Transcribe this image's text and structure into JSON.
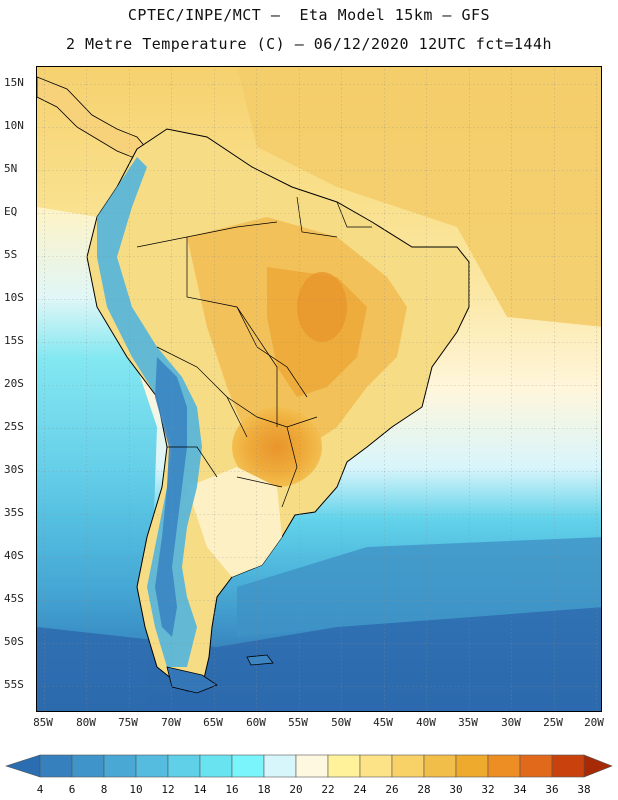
{
  "title": {
    "line1": "CPTEC/INPE/MCT –  Eta Model 15km – GFS",
    "line2": "2 Metre Temperature (C) – 06/12/2020 12UTC fct=144h"
  },
  "axes": {
    "lat_labels": [
      "15N",
      "10N",
      "5N",
      "EQ",
      "5S",
      "10S",
      "15S",
      "20S",
      "25S",
      "30S",
      "35S",
      "40S",
      "45S",
      "50S",
      "55S"
    ],
    "lon_labels": [
      "85W",
      "80W",
      "75W",
      "70W",
      "65W",
      "60W",
      "55W",
      "50W",
      "45W",
      "40W",
      "35W",
      "30W",
      "25W",
      "20W"
    ]
  },
  "colorbar": {
    "levels": [
      "4",
      "6",
      "8",
      "10",
      "12",
      "14",
      "16",
      "18",
      "20",
      "22",
      "24",
      "26",
      "28",
      "30",
      "32",
      "34",
      "36",
      "38"
    ],
    "colors": [
      "#2a6db0",
      "#3681bd",
      "#3f95c9",
      "#4aa8d5",
      "#55bcdf",
      "#5fd0e8",
      "#6ae3f0",
      "#7af5fb",
      "#d6f6fb",
      "#fff8e0",
      "#fff29a",
      "#fde387",
      "#f8d167",
      "#f1be49",
      "#eeaa2c",
      "#ec8e24",
      "#e0691c",
      "#c9420d",
      "#a62a05"
    ]
  },
  "colors": {
    "ocean_south": "#2e70b4",
    "ocean_mid": "#58c3e3",
    "ocean_north": "#f7d77a",
    "land_warm": "#f0b548",
    "land_hot": "#e58e2a",
    "andes_cold": "#3f8fc8"
  }
}
